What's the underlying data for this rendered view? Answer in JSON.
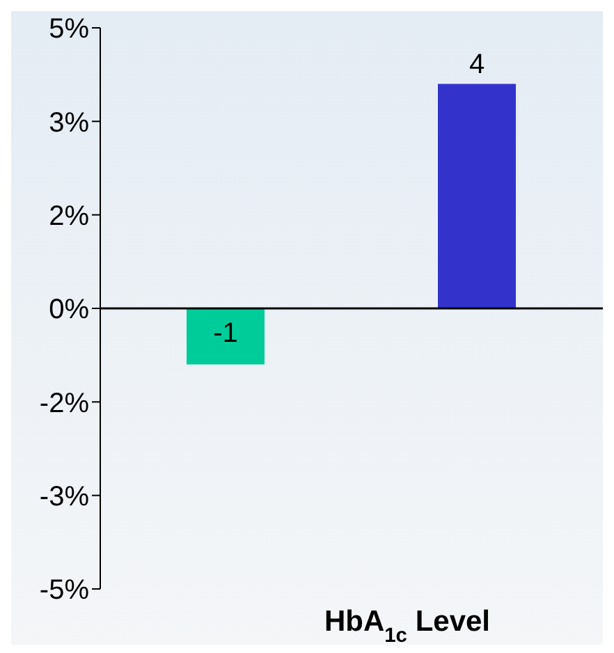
{
  "chart_data": {
    "type": "bar",
    "xlabel": "HbA$_{1c}$ Level",
    "categories": [
      null,
      null
    ],
    "values": [
      -1,
      4
    ],
    "colors": [
      "#00cc99",
      "#3333cc"
    ],
    "ylim": [
      -5,
      5
    ],
    "yticks": [
      {
        "value": -5,
        "label": "-5%"
      },
      {
        "value": -3.333,
        "label": "-3%"
      },
      {
        "value": -1.667,
        "label": "-2%"
      },
      {
        "value": 0,
        "label": "0%"
      },
      {
        "value": 1.667,
        "label": "2%"
      },
      {
        "value": 3.333,
        "label": "3%"
      },
      {
        "value": 5,
        "label": "5%"
      }
    ],
    "ref_lines": [
      {
        "axis": "y",
        "value": 0,
        "color": "#000000"
      }
    ],
    "data_labels": true,
    "grid": false,
    "legend": false
  }
}
